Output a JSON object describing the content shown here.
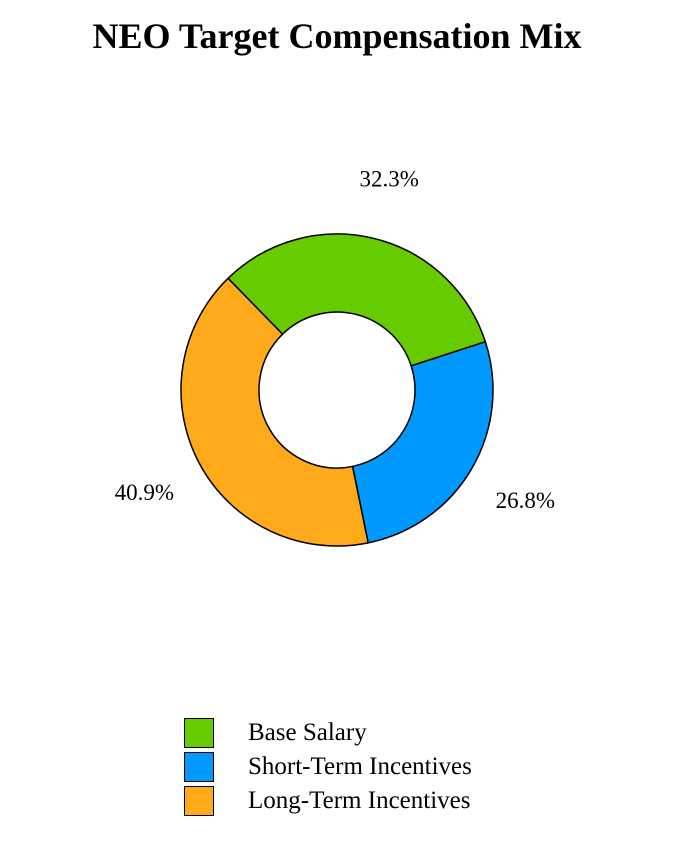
{
  "chart_data": {
    "type": "pie",
    "title": "NEO Target Compensation Mix",
    "donut": true,
    "slices": [
      {
        "label": "Base Salary",
        "value": 32.3,
        "value_label": "32.3%",
        "color": "#66cc00"
      },
      {
        "label": "Short-Term Incentives",
        "value": 26.8,
        "value_label": "26.8%",
        "color": "#0099ff"
      },
      {
        "label": "Long-Term Incentives",
        "value": 40.9,
        "value_label": "40.9%",
        "color": "#ffaa1a"
      }
    ],
    "legend_position": "bottom-center"
  }
}
